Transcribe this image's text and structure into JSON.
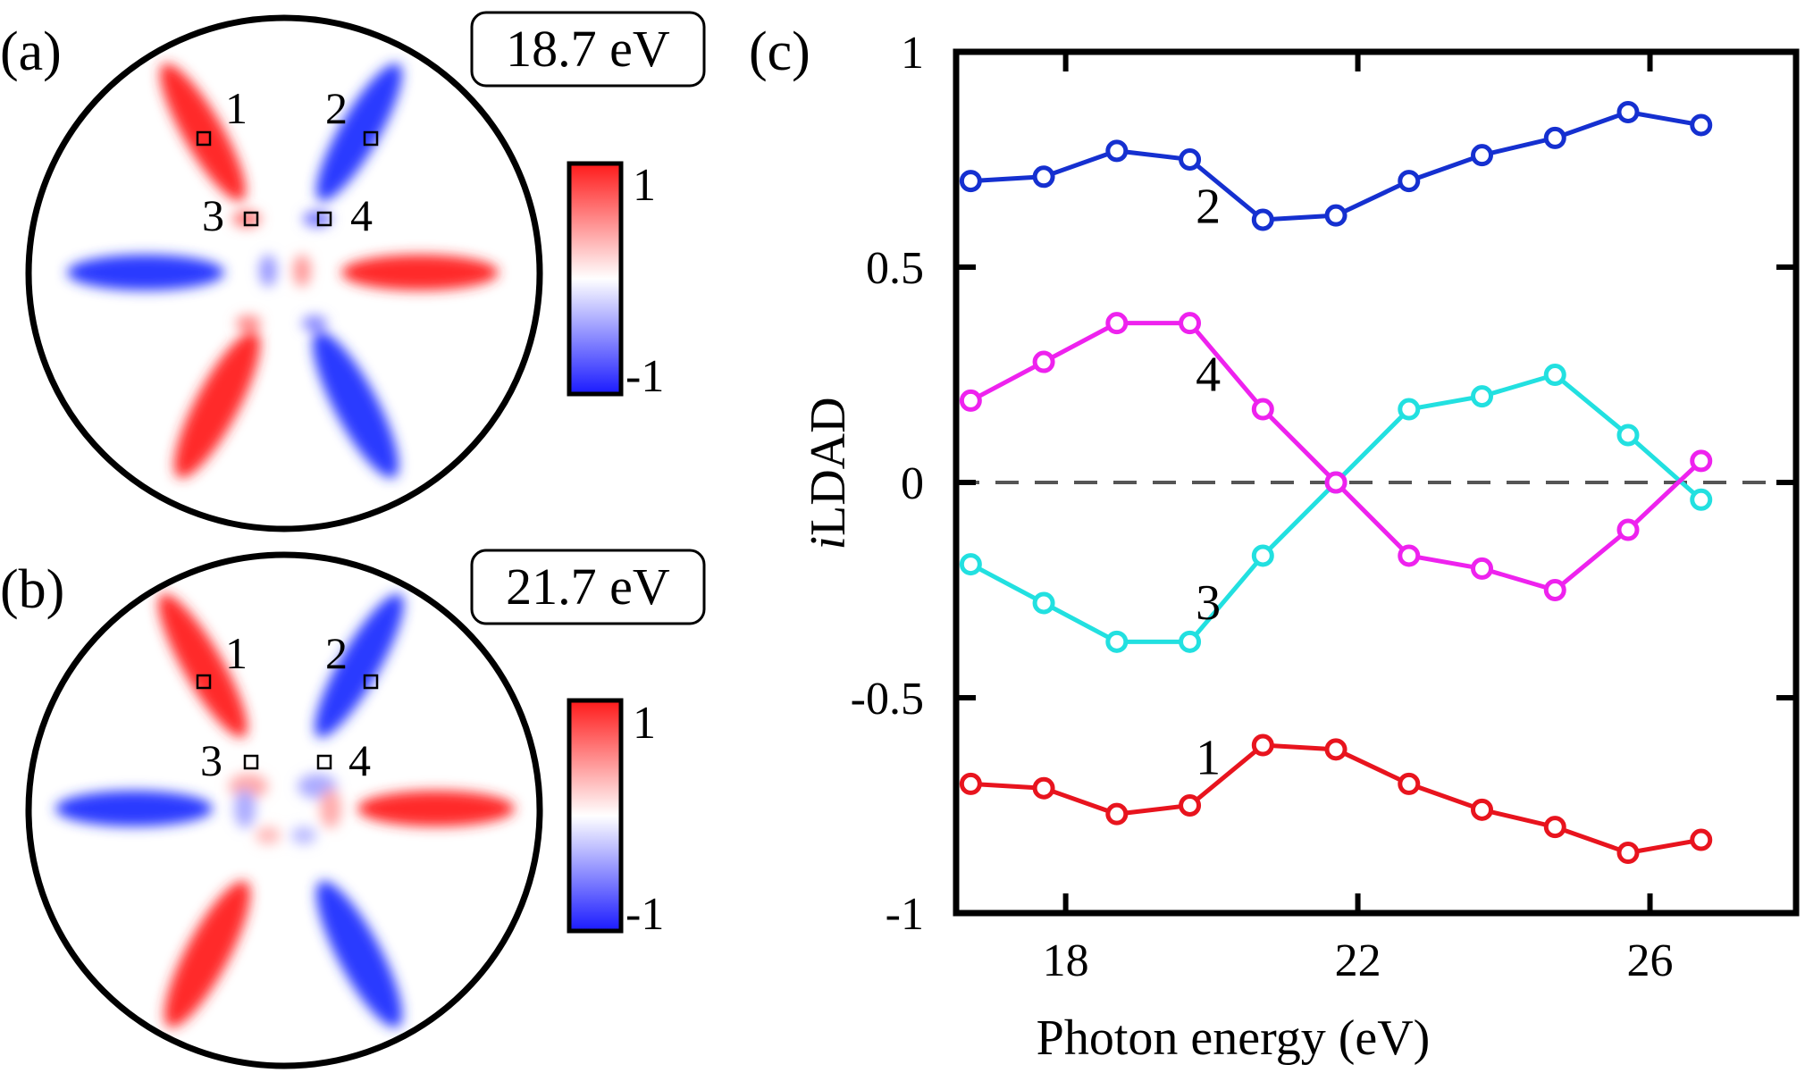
{
  "figure": {
    "panel_a": {
      "label": "(a)",
      "energy": "18.7 eV",
      "colorbar": {
        "max_label": "1",
        "min_label": "-1",
        "colors": [
          "#ff1a1a",
          "#ffffff",
          "#1a1aff"
        ]
      },
      "points": [
        "1",
        "2",
        "3",
        "4"
      ]
    },
    "panel_b": {
      "label": "(b)",
      "energy": "21.7 eV",
      "colorbar": {
        "max_label": "1",
        "min_label": "-1",
        "colors": [
          "#ff1a1a",
          "#ffffff",
          "#1a1aff"
        ]
      },
      "points": [
        "1",
        "2",
        "3",
        "4"
      ]
    },
    "panel_c_label": "(c)"
  },
  "chart_data": {
    "type": "line",
    "title": "",
    "xlabel": "Photon energy (eV)",
    "ylabel_italic": "i",
    "ylabel_rest": "LDAD",
    "xlim": [
      16.5,
      28
    ],
    "ylim": [
      -1,
      1
    ],
    "xticks": [
      18,
      22,
      26
    ],
    "yticks": [
      -1,
      -0.5,
      0,
      0.5,
      1
    ],
    "ytick_labels": [
      "-1",
      "-0.5",
      "0",
      "0.5",
      "1"
    ],
    "x": [
      16.7,
      17.7,
      18.7,
      19.7,
      20.7,
      21.7,
      22.7,
      23.7,
      24.7,
      25.7,
      26.7
    ],
    "zero_line": true,
    "series": [
      {
        "name": "1",
        "color": "#e8141e",
        "values": [
          -0.7,
          -0.71,
          -0.77,
          -0.75,
          -0.61,
          -0.62,
          -0.7,
          -0.76,
          -0.8,
          -0.86,
          -0.83
        ],
        "label_pos": [
          20.0,
          -0.64
        ]
      },
      {
        "name": "2",
        "color": "#1530d0",
        "values": [
          0.7,
          0.71,
          0.77,
          0.75,
          0.61,
          0.62,
          0.7,
          0.76,
          0.8,
          0.86,
          0.83
        ],
        "label_pos": [
          20.0,
          0.64
        ]
      },
      {
        "name": "3",
        "color": "#22e0e0",
        "values": [
          -0.19,
          -0.28,
          -0.37,
          -0.37,
          -0.17,
          0.0,
          0.17,
          0.2,
          0.25,
          0.11,
          -0.04
        ],
        "label_pos": [
          20.0,
          -0.28
        ]
      },
      {
        "name": "4",
        "color": "#ee22ee",
        "values": [
          0.19,
          0.28,
          0.37,
          0.37,
          0.17,
          0.0,
          -0.17,
          -0.2,
          -0.25,
          -0.11,
          0.05
        ],
        "label_pos": [
          20.0,
          0.25
        ]
      }
    ]
  }
}
